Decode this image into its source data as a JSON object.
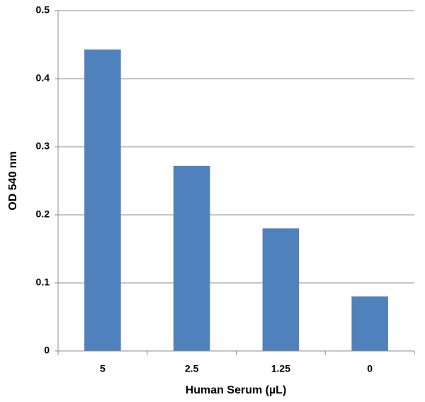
{
  "chart_data": {
    "type": "bar",
    "x_label": "Human Serum (µL)",
    "y_label": "OD 540 nm",
    "categories": [
      "5",
      "2.5",
      "1.25",
      "0"
    ],
    "values": [
      0.443,
      0.272,
      0.18,
      0.08
    ],
    "color": "#4f81bd",
    "ylim": [
      0,
      0.5
    ],
    "yticks": [
      0,
      0.1,
      0.2,
      0.3,
      0.4,
      0.5
    ],
    "grid": true
  }
}
